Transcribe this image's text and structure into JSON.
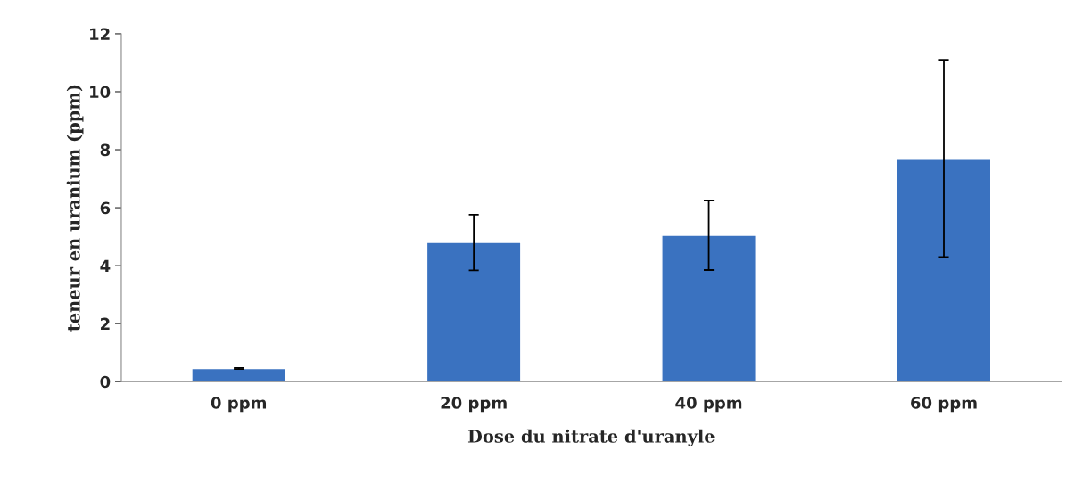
{
  "chart_data": {
    "type": "bar",
    "xlabel": "Dose du nitrate d'uranyle",
    "ylabel": "teneur en uranium (ppm)",
    "categories": [
      "0 ppm",
      "20 ppm",
      "40 ppm",
      "60 ppm"
    ],
    "values": [
      0.45,
      4.8,
      5.05,
      7.7
    ],
    "errors": [
      0.02,
      0.96,
      1.2,
      3.4
    ],
    "color": "#3a72c0",
    "ylim": [
      0,
      12
    ],
    "yticks": [
      0,
      2,
      4,
      6,
      8,
      10,
      12
    ],
    "grid": false,
    "legend": false
  }
}
